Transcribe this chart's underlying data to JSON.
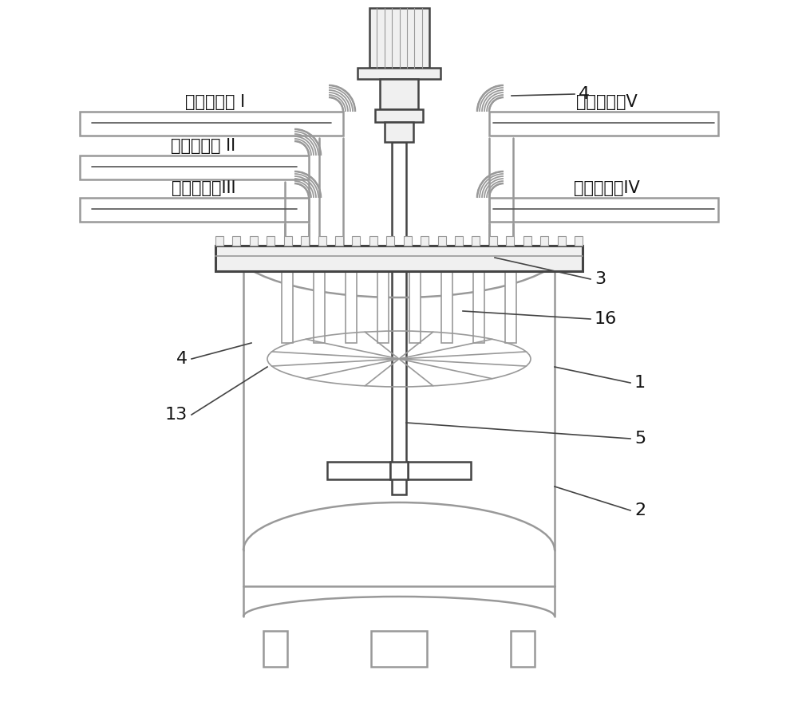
{
  "bg_color": "#ffffff",
  "line_color": "#999999",
  "dark_line": "#444444",
  "text_color": "#111111",
  "labels": {
    "surface_agent_1": "表面处理剂 I",
    "surface_agent_2": "表面处理剂 II",
    "surface_agent_3": "表面处理剂III",
    "surface_agent_4": "表面处理剂IV",
    "surface_agent_5": "表面处理剂V",
    "num_1": "1",
    "num_2": "2",
    "num_3": "3",
    "num_4_top": "4",
    "num_4_left": "4",
    "num_5": "5",
    "num_13": "13",
    "num_16": "16"
  },
  "figsize": [
    10,
    8.99
  ],
  "dpi": 100
}
